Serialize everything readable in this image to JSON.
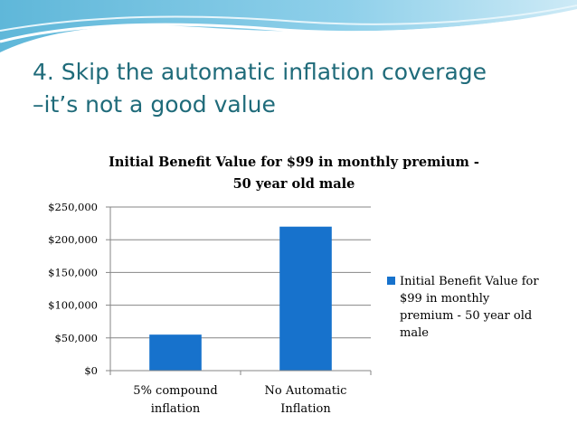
{
  "slide": {
    "title_lines": [
      "4. Skip the automatic inflation coverage",
      "–it’s not a good value"
    ]
  },
  "colors": {
    "title": "#1f6b7a",
    "bar": "#1772cc",
    "grid": "#868686"
  },
  "chart_data": {
    "type": "bar",
    "title_lines": [
      "Initial Benefit Value for $99 in monthly premium -",
      "50 year old male"
    ],
    "categories": [
      [
        "5% compound",
        "inflation"
      ],
      [
        "No Automatic",
        "Inflation"
      ]
    ],
    "series": [
      {
        "name_lines": [
          "Initial Benefit Value for",
          "$99 in monthly",
          "premium - 50 year old",
          "male"
        ],
        "values": [
          55000,
          220000
        ]
      }
    ],
    "ylim": [
      0,
      250000
    ],
    "yticks": [
      0,
      50000,
      100000,
      150000,
      200000,
      250000
    ],
    "ytick_labels": [
      "$0",
      "$50,000",
      "$100,000",
      "$150,000",
      "$200,000",
      "$250,000"
    ],
    "grid": true,
    "legend": "right"
  }
}
